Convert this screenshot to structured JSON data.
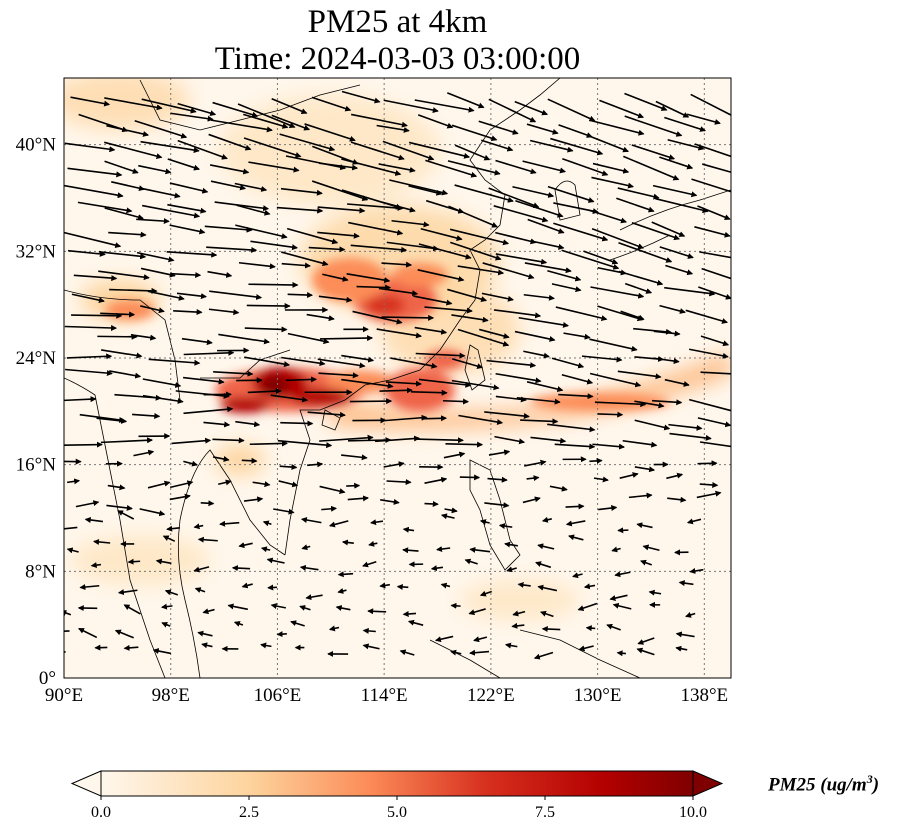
{
  "map": {
    "title_line1": "PM25 at 4km",
    "title_line2": "Time: 2024-03-03 03:00:00",
    "lon_ticks": [
      "90°E",
      "98°E",
      "106°E",
      "114°E",
      "122°E",
      "130°E",
      "138°E"
    ],
    "lat_ticks": [
      "0°",
      "8°N",
      "16°N",
      "24°N",
      "32°N",
      "40°N"
    ],
    "extent": {
      "lon": [
        90,
        140
      ],
      "lat": [
        0,
        45
      ]
    },
    "gridlines": true,
    "colormap": "OrRd",
    "colors": {
      "low": "#fff7ec",
      "mid": "#fdae6b",
      "high": "#d7301f",
      "max": "#7f0000",
      "coast": "#000000"
    }
  },
  "colorbar": {
    "ticks": [
      "0.0",
      "2.5",
      "5.0",
      "7.5",
      "10.0"
    ],
    "range": [
      0,
      10
    ],
    "extend": "both",
    "label_text": "PM25 (ug/m",
    "label_sup": "3",
    "label_close": ")"
  },
  "chart_data": {
    "type": "heatmap",
    "variable": "PM25",
    "units": "ug/m3",
    "level": "4km",
    "time": "2024-03-03 03:00:00",
    "lon_range": [
      90,
      140
    ],
    "lat_range": [
      0,
      45
    ],
    "value_range": [
      0,
      10
    ],
    "plumes": [
      {
        "lon": 106.5,
        "lat": 21.5,
        "value": 10.0
      },
      {
        "lon": 109.0,
        "lat": 20.8,
        "value": 9.0
      },
      {
        "lon": 103.5,
        "lat": 20.5,
        "value": 8.0
      },
      {
        "lon": 114.5,
        "lat": 28.5,
        "value": 8.0
      },
      {
        "lon": 111.5,
        "lat": 29.5,
        "value": 6.5
      },
      {
        "lon": 117.5,
        "lat": 22.0,
        "value": 7.0
      },
      {
        "lon": 119.5,
        "lat": 23.0,
        "value": 6.0
      },
      {
        "lon": 95.5,
        "lat": 27.5,
        "value": 5.0
      },
      {
        "lon": 125.0,
        "lat": 20.0,
        "value": 4.0
      },
      {
        "lon": 132.0,
        "lat": 21.5,
        "value": 3.5
      },
      {
        "lon": 137.0,
        "lat": 23.5,
        "value": 3.0
      },
      {
        "lon": 91.5,
        "lat": 43.0,
        "value": 2.5
      }
    ],
    "wind": {
      "description": "westerly flow north of 16°N, northeasterly/easterly flow south of 14°N"
    }
  }
}
